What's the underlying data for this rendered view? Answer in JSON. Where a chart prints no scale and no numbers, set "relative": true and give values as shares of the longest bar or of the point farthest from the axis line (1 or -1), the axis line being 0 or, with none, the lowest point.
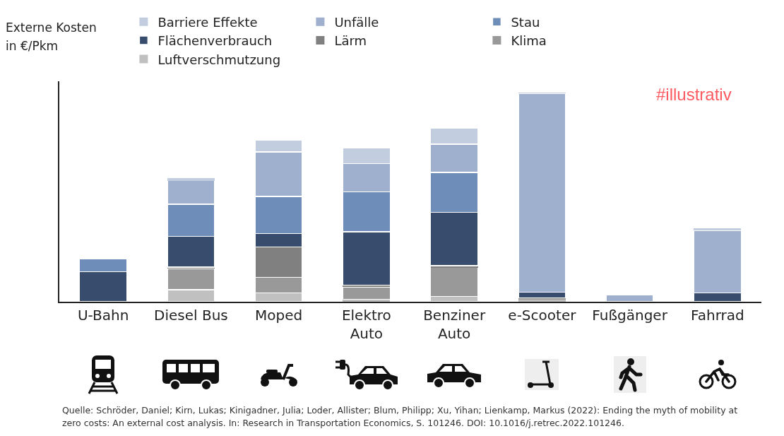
{
  "chart_data": {
    "type": "bar",
    "stacked": true,
    "relative": true,
    "legend": "top",
    "grid": false,
    "ylabel": "Externe Kosten in €/Pkm",
    "categories": [
      "U-Bahn",
      "Diesel Bus",
      "Moped",
      "Elektro Auto",
      "Benziner Auto",
      "e-Scooter",
      "Fußgänger",
      "Fahrrad"
    ],
    "series": [
      {
        "name": "Luftverschmutzung",
        "color": "#c0c0c0",
        "values": [
          0,
          0.058,
          0.043,
          0.012,
          0.025,
          0.009,
          0,
          0
        ]
      },
      {
        "name": "Klima",
        "color": "#999999",
        "values": [
          0,
          0.101,
          0.074,
          0.058,
          0.138,
          0.009,
          0,
          0
        ]
      },
      {
        "name": "Lärm",
        "color": "#808080",
        "values": [
          0,
          0.006,
          0.144,
          0.009,
          0.009,
          0,
          0,
          0
        ]
      },
      {
        "name": "Flächenverbrauch",
        "color": "#384d6d",
        "values": [
          0.144,
          0.147,
          0.064,
          0.255,
          0.255,
          0.028,
          0,
          0.043
        ]
      },
      {
        "name": "Stau",
        "color": "#6e8db8",
        "values": [
          0.061,
          0.153,
          0.178,
          0.19,
          0.19,
          0,
          0,
          0
        ]
      },
      {
        "name": "Unfälle",
        "color": "#9eb0cd",
        "values": [
          0,
          0.113,
          0.212,
          0.135,
          0.135,
          0.948,
          0.034,
          0.298
        ]
      },
      {
        "name": "Barriere Effekte",
        "color": "#c3cde0",
        "values": [
          0,
          0.012,
          0.058,
          0.077,
          0.077,
          0.006,
          0,
          0.009
        ]
      }
    ],
    "annotations": [
      "#illustrativ",
      "Quelle: Schröder, Daniel; Kirn, Lukas; Kinigadner, Julia; Loder, Allister; Blum, Philipp; Xu, Yihan; Lienkamp, Markus (2022): Ending the myth of mobility at zero costs: An external cost analysis. In: Research in Transportation Economics, S. 101246. DOI: 10.1016/j.retrec.2022.101246."
    ]
  }
}
